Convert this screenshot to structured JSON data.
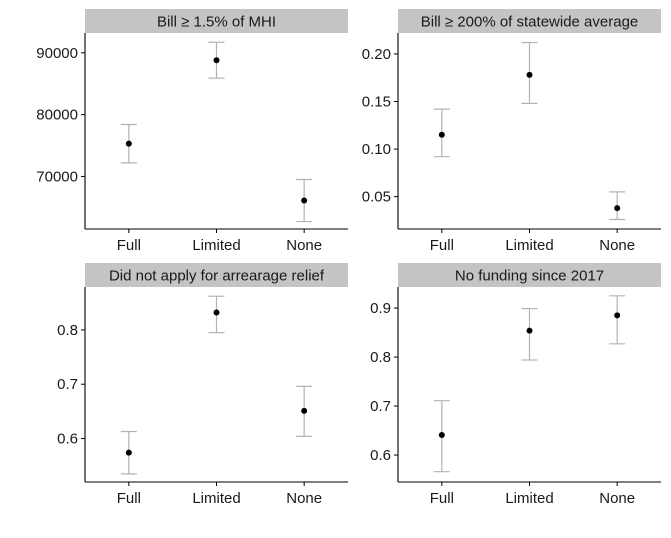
{
  "chart_data": [
    {
      "type": "scatter",
      "title": "Bill ≥ 1.5% of MHI",
      "categories": [
        "Full",
        "Limited",
        "None"
      ],
      "values": [
        75300,
        88800,
        66100
      ],
      "lower": [
        72200,
        85900,
        62700
      ],
      "upper": [
        78400,
        91700,
        69500
      ],
      "ylim": [
        61500,
        93200
      ],
      "yticks": [
        70000,
        80000,
        90000
      ],
      "ytick_labels": [
        "70000",
        "80000",
        "90000"
      ]
    },
    {
      "type": "scatter",
      "title": "Bill ≥ 200% of statewide average",
      "categories": [
        "Full",
        "Limited",
        "None"
      ],
      "values": [
        0.115,
        0.178,
        0.038
      ],
      "lower": [
        0.092,
        0.148,
        0.026
      ],
      "upper": [
        0.142,
        0.212,
        0.055
      ],
      "ylim": [
        0.016,
        0.222
      ],
      "yticks": [
        0.05,
        0.1,
        0.15,
        0.2
      ],
      "ytick_labels": [
        "0.05",
        "0.10",
        "0.15",
        "0.20"
      ]
    },
    {
      "type": "scatter",
      "title": "Did not apply for arrearage relief",
      "categories": [
        "Full",
        "Limited",
        "None"
      ],
      "values": [
        0.574,
        0.832,
        0.651
      ],
      "lower": [
        0.535,
        0.795,
        0.604
      ],
      "upper": [
        0.613,
        0.862,
        0.696
      ],
      "ylim": [
        0.52,
        0.879
      ],
      "yticks": [
        0.6,
        0.7,
        0.8
      ],
      "ytick_labels": [
        "0.6",
        "0.7",
        "0.8"
      ]
    },
    {
      "type": "scatter",
      "title": "No funding since 2017",
      "categories": [
        "Full",
        "Limited",
        "None"
      ],
      "values": [
        0.641,
        0.854,
        0.885
      ],
      "lower": [
        0.566,
        0.794,
        0.827
      ],
      "upper": [
        0.711,
        0.899,
        0.925
      ],
      "ylim": [
        0.545,
        0.943
      ],
      "yticks": [
        0.6,
        0.7,
        0.8,
        0.9
      ],
      "ytick_labels": [
        "0.6",
        "0.7",
        "0.8",
        "0.9"
      ]
    }
  ],
  "colors": {
    "strip": "#c4c4c4",
    "point": "#000000",
    "errorbar": "#b3b3b3",
    "axis": "#000000"
  }
}
